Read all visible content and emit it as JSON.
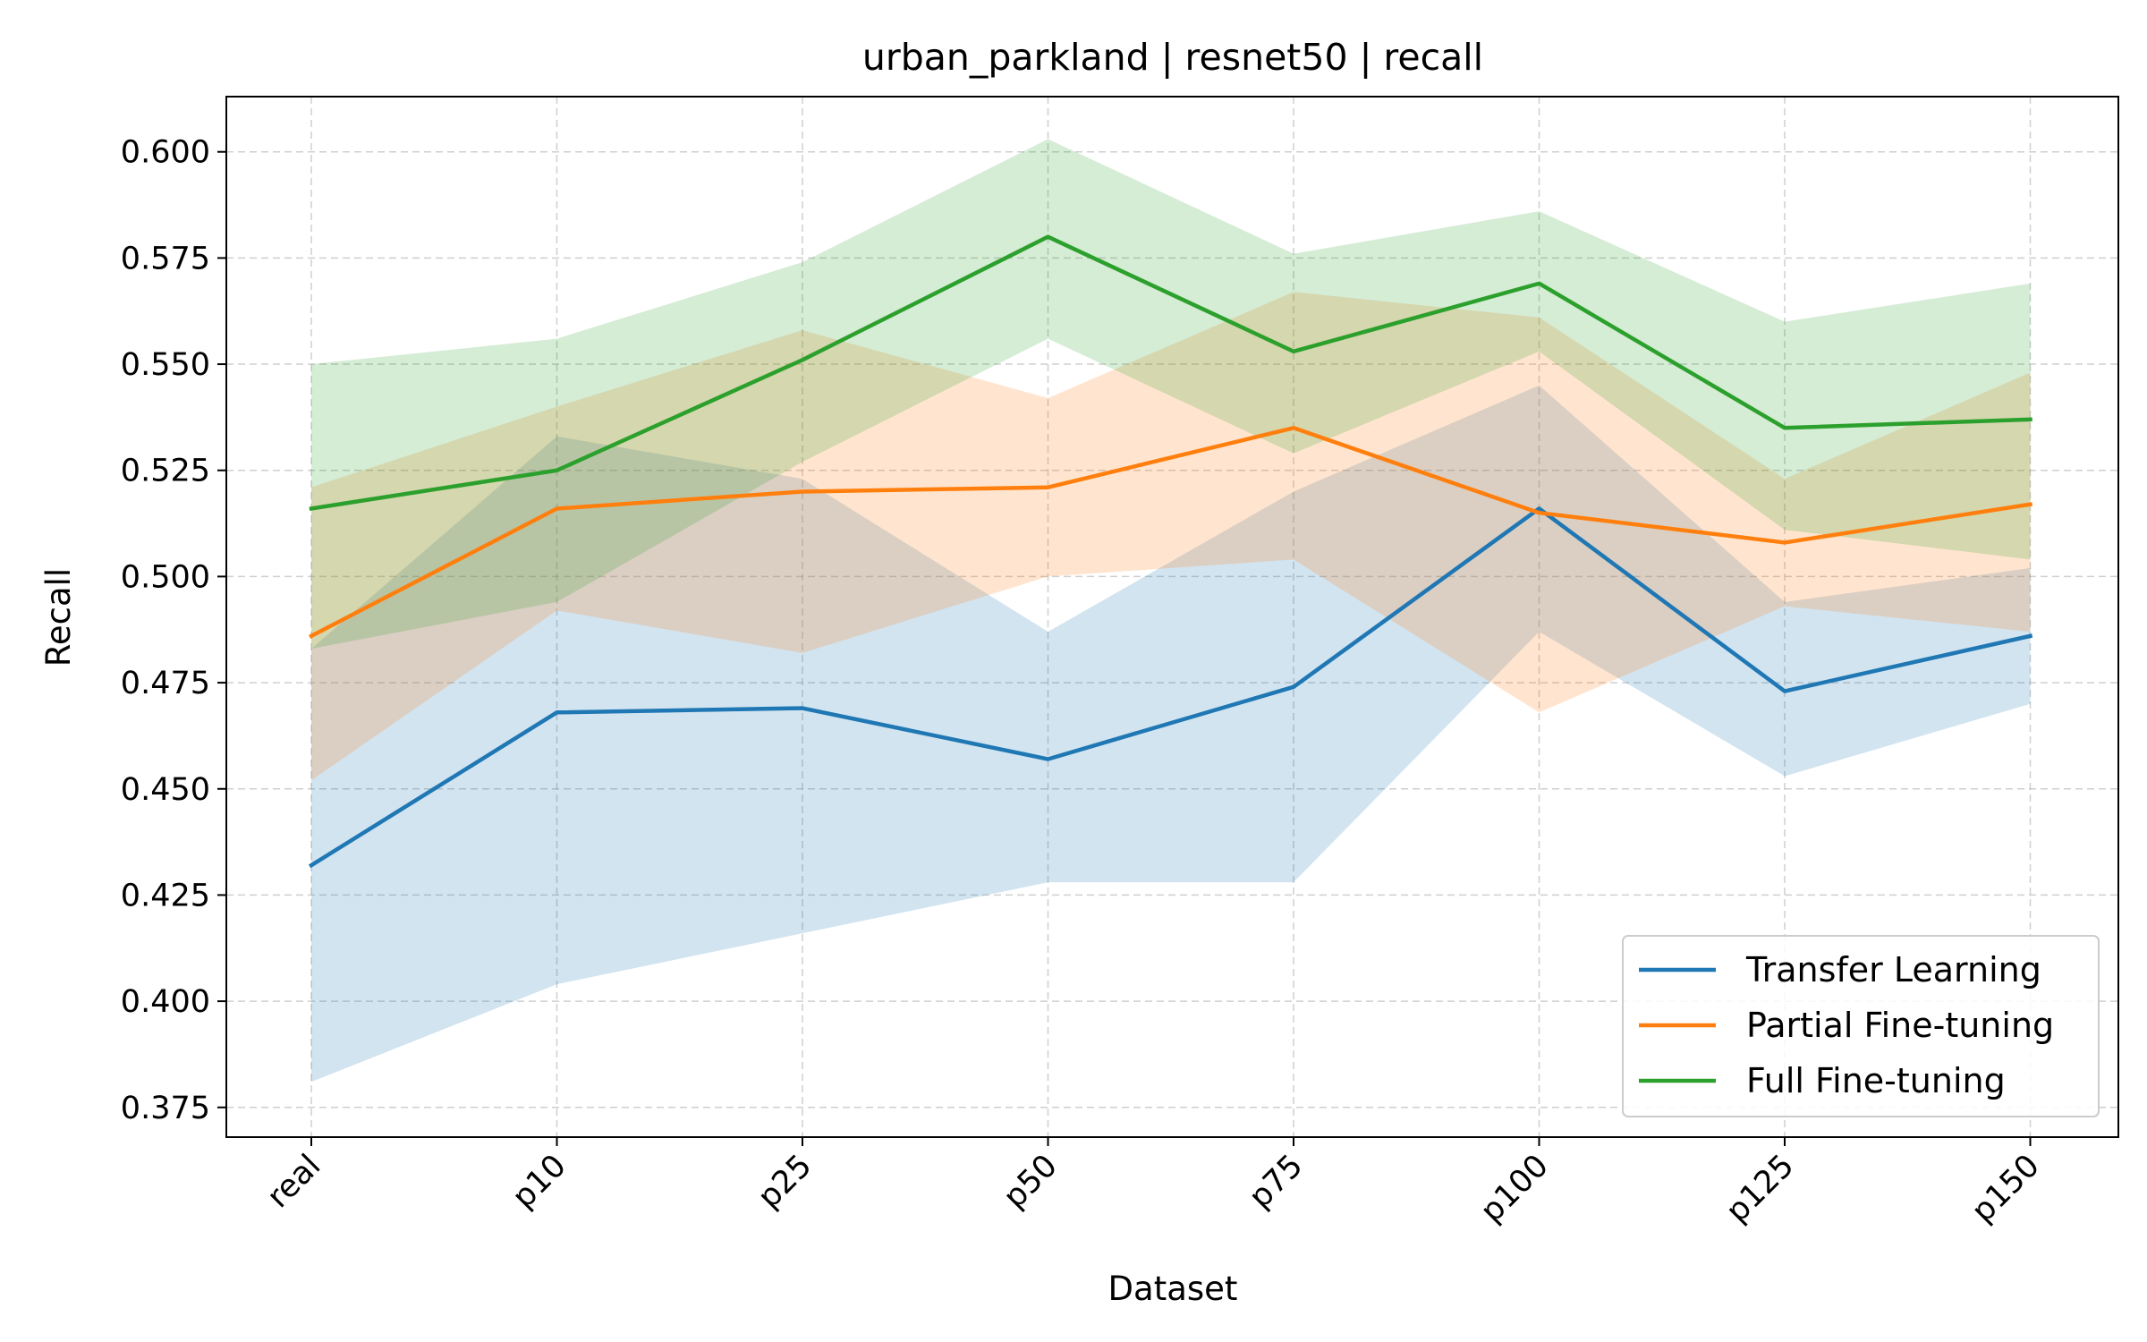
{
  "chart_data": {
    "type": "line",
    "title": "urban_parkland | resnet50 | recall",
    "xlabel": "Dataset",
    "ylabel": "Recall",
    "categories": [
      "real",
      "p10",
      "p25",
      "p50",
      "p75",
      "p100",
      "p125",
      "p150"
    ],
    "ylim": [
      0.368,
      0.613
    ],
    "yticks": [
      "0.375",
      "0.400",
      "0.425",
      "0.450",
      "0.475",
      "0.500",
      "0.525",
      "0.550",
      "0.575",
      "0.600"
    ],
    "grid": true,
    "legend_position": "lower right",
    "series": [
      {
        "name": "Transfer Learning",
        "color": "#1f77b4",
        "values": [
          0.432,
          0.468,
          0.469,
          0.457,
          0.474,
          0.516,
          0.473,
          0.486
        ],
        "lower": [
          0.381,
          0.404,
          0.416,
          0.428,
          0.428,
          0.487,
          0.453,
          0.47
        ],
        "upper": [
          0.483,
          0.533,
          0.523,
          0.487,
          0.52,
          0.545,
          0.494,
          0.502
        ]
      },
      {
        "name": "Partial Fine-tuning",
        "color": "#ff7f0e",
        "values": [
          0.486,
          0.516,
          0.52,
          0.521,
          0.535,
          0.515,
          0.508,
          0.517
        ],
        "lower": [
          0.452,
          0.492,
          0.482,
          0.5,
          0.504,
          0.468,
          0.493,
          0.487
        ],
        "upper": [
          0.521,
          0.54,
          0.558,
          0.542,
          0.567,
          0.561,
          0.523,
          0.548
        ]
      },
      {
        "name": "Full Fine-tuning",
        "color": "#2ca02c",
        "values": [
          0.516,
          0.525,
          0.551,
          0.58,
          0.553,
          0.569,
          0.535,
          0.537
        ],
        "lower": [
          0.483,
          0.494,
          0.527,
          0.556,
          0.529,
          0.553,
          0.511,
          0.504
        ],
        "upper": [
          0.55,
          0.556,
          0.574,
          0.603,
          0.576,
          0.586,
          0.56,
          0.569
        ]
      }
    ]
  }
}
